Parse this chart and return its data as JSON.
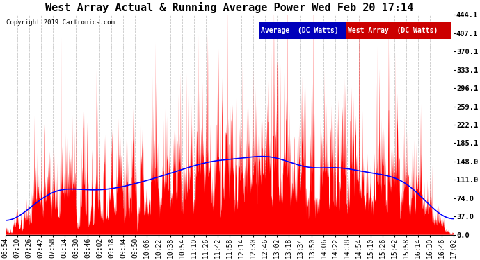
{
  "title": "West Array Actual & Running Average Power Wed Feb 20 17:14",
  "copyright": "Copyright 2019 Cartronics.com",
  "ylabel_right_ticks": [
    0.0,
    37.0,
    74.0,
    111.0,
    148.0,
    185.1,
    222.1,
    259.1,
    296.1,
    333.1,
    370.1,
    407.1,
    444.1
  ],
  "ymin": 0.0,
  "ymax": 444.1,
  "background_color": "#ffffff",
  "plot_bg_color": "#ffffff",
  "grid_color": "#bbbbbb",
  "bar_color": "#ff0000",
  "avg_color": "#0000ff",
  "legend_avg_bg": "#0000cc",
  "legend_west_bg": "#cc0000",
  "legend_avg_text": "Average  (DC Watts)",
  "legend_west_text": "West Array  (DC Watts)",
  "title_fontsize": 11,
  "copyright_fontsize": 6.5,
  "tick_fontsize": 7,
  "x_tick_labels": [
    "06:54",
    "07:10",
    "07:26",
    "07:42",
    "07:58",
    "08:14",
    "08:30",
    "08:46",
    "09:02",
    "09:18",
    "09:34",
    "09:50",
    "10:06",
    "10:22",
    "10:38",
    "10:54",
    "11:10",
    "11:26",
    "11:42",
    "11:58",
    "12:14",
    "12:30",
    "12:46",
    "13:02",
    "13:18",
    "13:34",
    "13:50",
    "14:06",
    "14:22",
    "14:38",
    "14:54",
    "15:10",
    "15:26",
    "15:42",
    "15:58",
    "16:14",
    "16:30",
    "16:46",
    "17:02"
  ]
}
